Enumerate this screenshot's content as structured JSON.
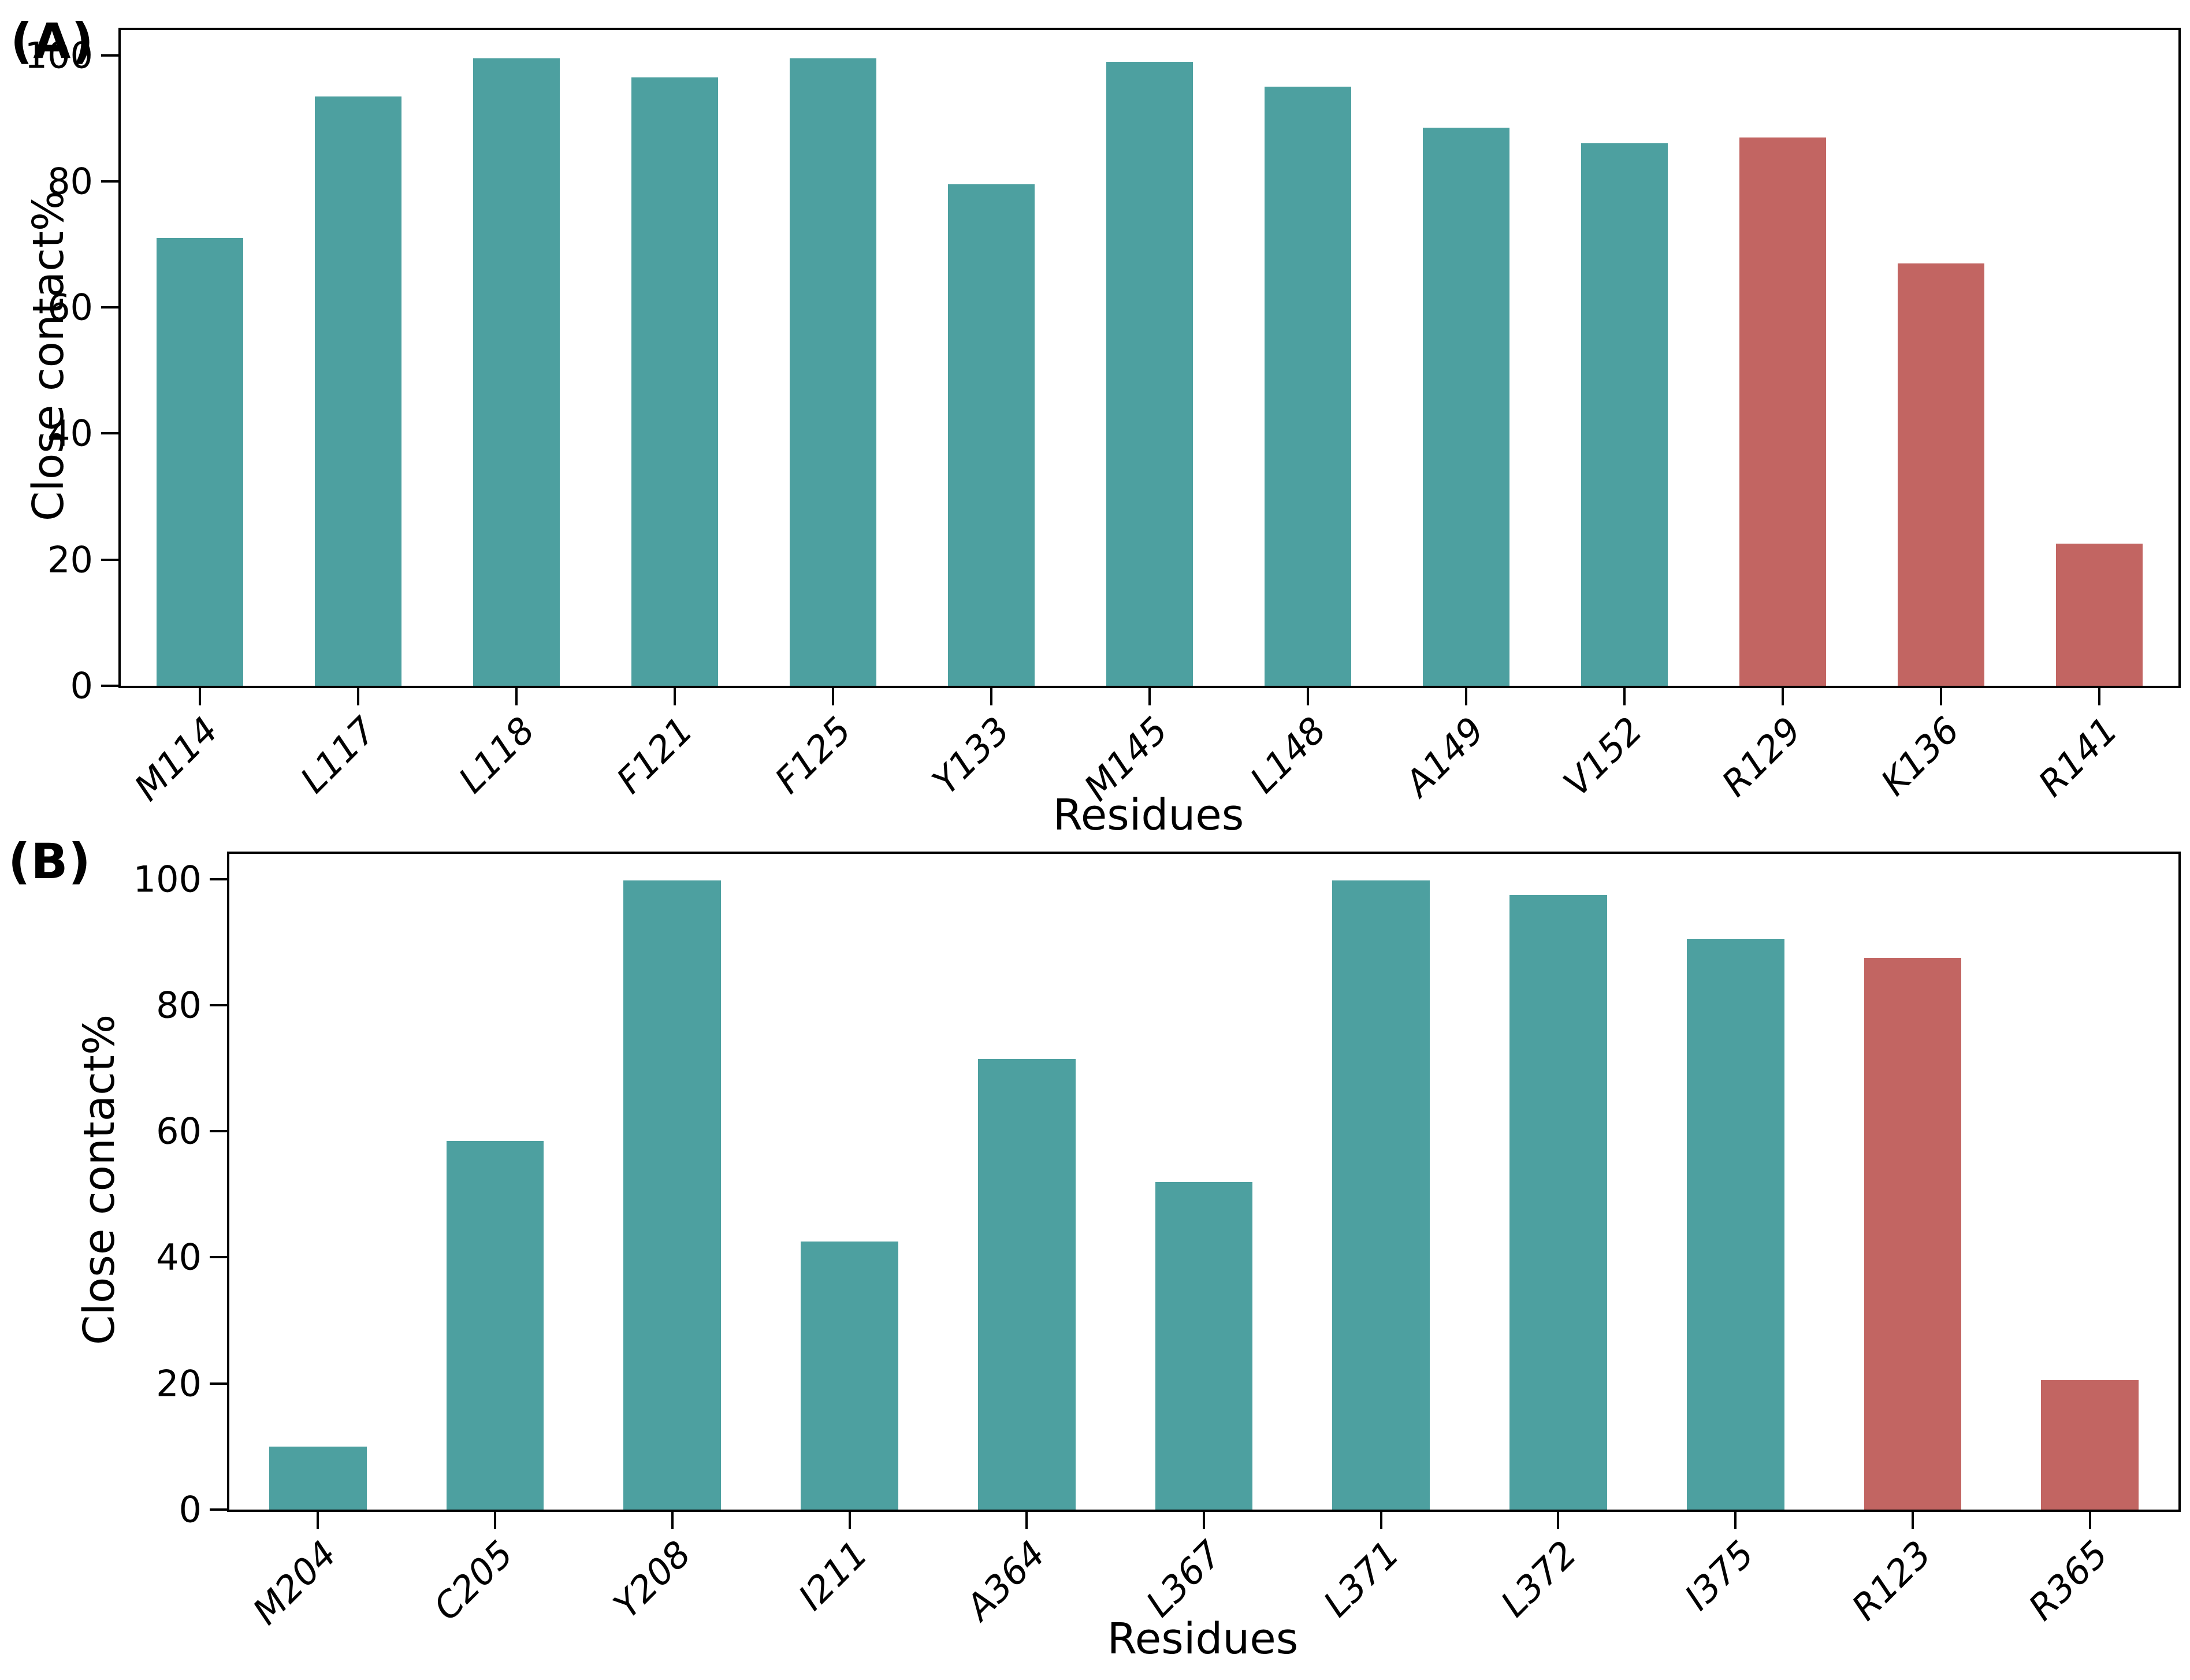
{
  "colors": {
    "bar_teal": "#4DA0A0",
    "bar_red": "#C26562",
    "axis": "#000000",
    "background": "#FFFFFF"
  },
  "chart_data": [
    {
      "panel_label": "(A)",
      "type": "bar",
      "title": "",
      "xlabel": "Residues",
      "ylabel": "Close contact%",
      "categories": [
        "M114",
        "L117",
        "L118",
        "F121",
        "F125",
        "Y133",
        "M145",
        "L148",
        "A149",
        "V152",
        "R129",
        "K136",
        "R141"
      ],
      "values": [
        71,
        93.5,
        99.5,
        96.5,
        99.5,
        79.5,
        99,
        95,
        88.5,
        86,
        87,
        67,
        22.5
      ],
      "bar_colors": [
        "#4DA0A0",
        "#4DA0A0",
        "#4DA0A0",
        "#4DA0A0",
        "#4DA0A0",
        "#4DA0A0",
        "#4DA0A0",
        "#4DA0A0",
        "#4DA0A0",
        "#4DA0A0",
        "#C26562",
        "#C26562",
        "#C26562"
      ],
      "yticks": [
        0,
        20,
        40,
        60,
        80,
        100
      ],
      "ylim": [
        0,
        104
      ],
      "grid": false,
      "legend_position": "none"
    },
    {
      "panel_label": "(B)",
      "type": "bar",
      "title": "",
      "xlabel": "Residues",
      "ylabel": "Close contact%",
      "categories": [
        "M204",
        "C205",
        "Y208",
        "I211",
        "A364",
        "L367",
        "L371",
        "L372",
        "I375",
        "R123",
        "R365"
      ],
      "values": [
        10,
        58.5,
        99.8,
        42.5,
        71.5,
        52,
        99.8,
        97.5,
        90.5,
        87.5,
        20.5
      ],
      "bar_colors": [
        "#4DA0A0",
        "#4DA0A0",
        "#4DA0A0",
        "#4DA0A0",
        "#4DA0A0",
        "#4DA0A0",
        "#4DA0A0",
        "#4DA0A0",
        "#4DA0A0",
        "#C26562",
        "#C26562"
      ],
      "yticks": [
        0,
        20,
        40,
        60,
        80,
        100
      ],
      "ylim": [
        0,
        104
      ],
      "grid": false,
      "legend_position": "none"
    }
  ]
}
